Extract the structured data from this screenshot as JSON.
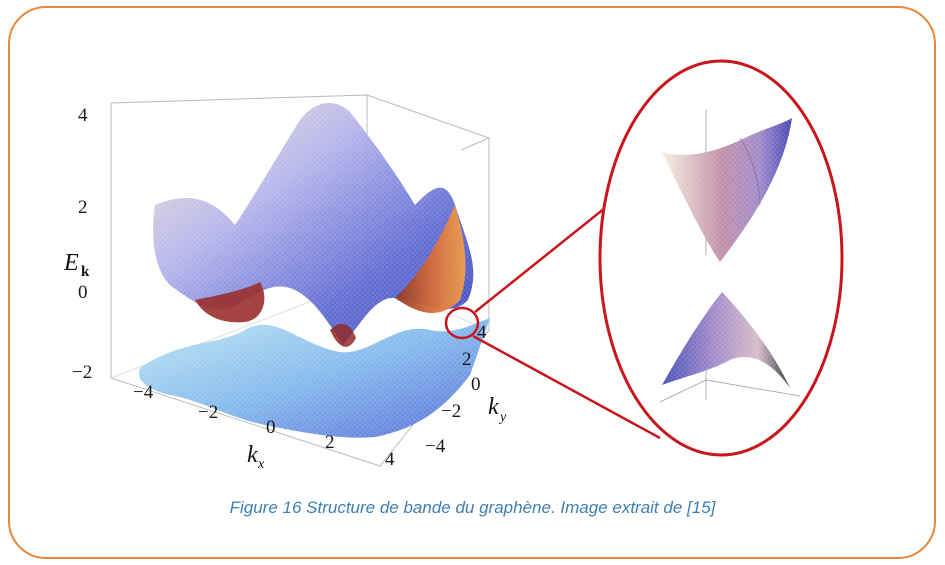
{
  "caption": "Figure 16 Structure de bande du graphène. Image extrait de [15]",
  "colors": {
    "frame": "#e8863a",
    "zoom_ellipse": "#c8161d",
    "caption": "#3e7fb3",
    "surface_blue": "#6a78d8",
    "surface_orange": "#e08a45"
  },
  "main_plot": {
    "z_axis_label": "E",
    "z_axis_sub": "k",
    "x_axis_label": "k",
    "x_axis_sub": "x",
    "y_axis_label": "k",
    "y_axis_sub": "y",
    "z_ticks": [
      "4",
      "2",
      "0",
      "−2"
    ],
    "x_ticks": [
      "−4",
      "−2",
      "0",
      "2",
      "4"
    ],
    "y_ticks": [
      "4",
      "2",
      "0",
      "−2",
      "−4"
    ]
  },
  "inset": {
    "description_icon": "dirac-cone-icon"
  }
}
